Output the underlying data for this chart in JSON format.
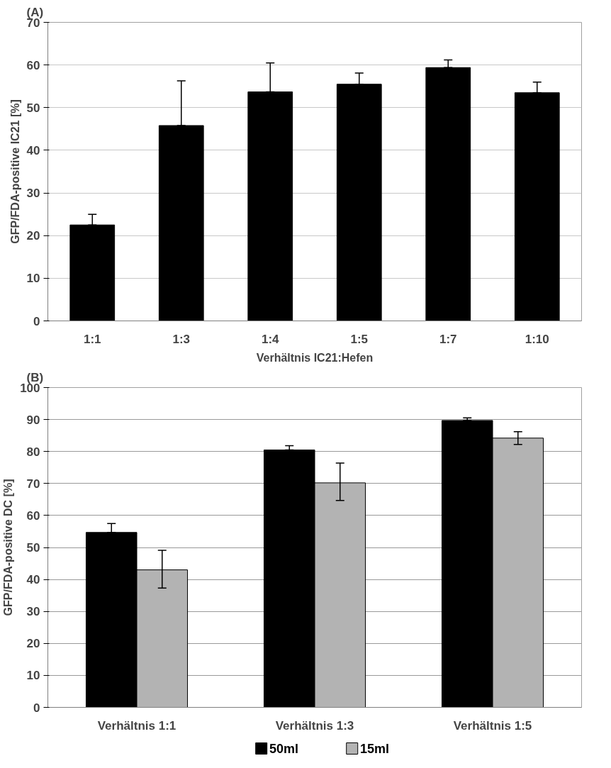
{
  "chart_data": [
    {
      "type": "bar",
      "title": "(A)",
      "xlabel": "Verhältnis IC21:Hefen",
      "ylabel": "GFP/FDA-positive IC21 [%]",
      "categories": [
        "1:1",
        "1:3",
        "1:4",
        "1:5",
        "1:7",
        "1:10"
      ],
      "values": [
        22.5,
        45.8,
        53.7,
        55.5,
        59.4,
        53.5
      ],
      "color": "#000000",
      "errors": [
        [
          22.5,
          25
        ],
        [
          45.8,
          56.3
        ],
        [
          53.7,
          60.5
        ],
        [
          55.5,
          58.1
        ],
        [
          59.4,
          61.2
        ],
        [
          53.5,
          56
        ]
      ],
      "ylim": [
        0,
        70
      ],
      "yticks": [
        0,
        10,
        20,
        30,
        40,
        50,
        60,
        70
      ],
      "grid": "y",
      "legend": false
    },
    {
      "type": "bar",
      "title": "(B)",
      "ylabel": "GFP/FDA-positive DC [%]",
      "categories": [
        "Verhältnis 1:1",
        "Verhältnis 1:3",
        "Verhältnis 1:5"
      ],
      "series": [
        {
          "name": "50ml",
          "color": "#000000",
          "values": [
            54.7,
            80.5,
            89.7
          ],
          "errors": [
            [
              54.7,
              57.5
            ],
            [
              80.5,
              81.8
            ],
            [
              89.7,
              90.5
            ]
          ]
        },
        {
          "name": "15ml",
          "color": "#b3b3b3",
          "values": [
            43,
            70.2,
            84.2
          ],
          "errors": [
            [
              37.3,
              49.1
            ],
            [
              64.7,
              76.4
            ],
            [
              82.2,
              86.2
            ]
          ]
        }
      ],
      "ylim": [
        0,
        100
      ],
      "yticks": [
        0,
        10,
        20,
        30,
        40,
        50,
        60,
        70,
        80,
        90,
        100
      ],
      "grid": "y",
      "legend": "bottom"
    }
  ]
}
